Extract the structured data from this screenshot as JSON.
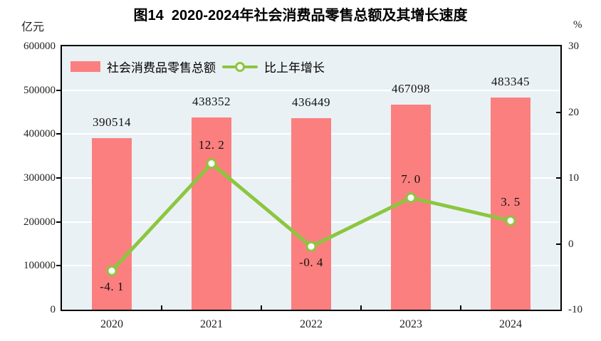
{
  "title": "图14  2020-2024年社会消费品零售总额及其增长速度",
  "chart_data": {
    "type": "bar",
    "subtype": "bar+line combo chart",
    "title": "图14  2020-2024年社会消费品零售总额及其增长速度",
    "unit_left": "亿元",
    "unit_right": "%",
    "categories": [
      "2020",
      "2021",
      "2022",
      "2023",
      "2024"
    ],
    "series": [
      {
        "name": "社会消费品零售总额",
        "type": "bar",
        "axis": "left",
        "values": [
          390514,
          438352,
          436449,
          467098,
          483345
        ],
        "labels": [
          "390514",
          "438352",
          "436449",
          "467098",
          "483345"
        ]
      },
      {
        "name": "比上年增长",
        "type": "line",
        "axis": "right",
        "values": [
          -4.1,
          12.2,
          -0.4,
          7.0,
          3.5
        ],
        "labels": [
          "-4. 1",
          "12. 2",
          "-0. 4",
          "7. 0",
          "3. 5"
        ],
        "label_side": [
          "below",
          "above",
          "below",
          "above",
          "above"
        ]
      }
    ],
    "y_left": {
      "min": 0,
      "max": 600000,
      "tick_step": 100000,
      "ticks": [
        "600000",
        "500000",
        "400000",
        "300000",
        "200000",
        "100000",
        "0"
      ]
    },
    "y_right": {
      "min": -10,
      "max": 30,
      "tick_step": 10,
      "ticks": [
        "30",
        "20",
        "10",
        "0",
        "-10"
      ]
    },
    "grid": "horizontal white lines every 100000 (left axis)",
    "legend_position": "top-left inside plot area",
    "colors": {
      "bar": "#fb7f7f",
      "line": "#8cc63f",
      "plot_background": "#eaf1f5",
      "gridline": "#ffffff",
      "axis_border": "#000000",
      "label_text": "#111111"
    }
  }
}
